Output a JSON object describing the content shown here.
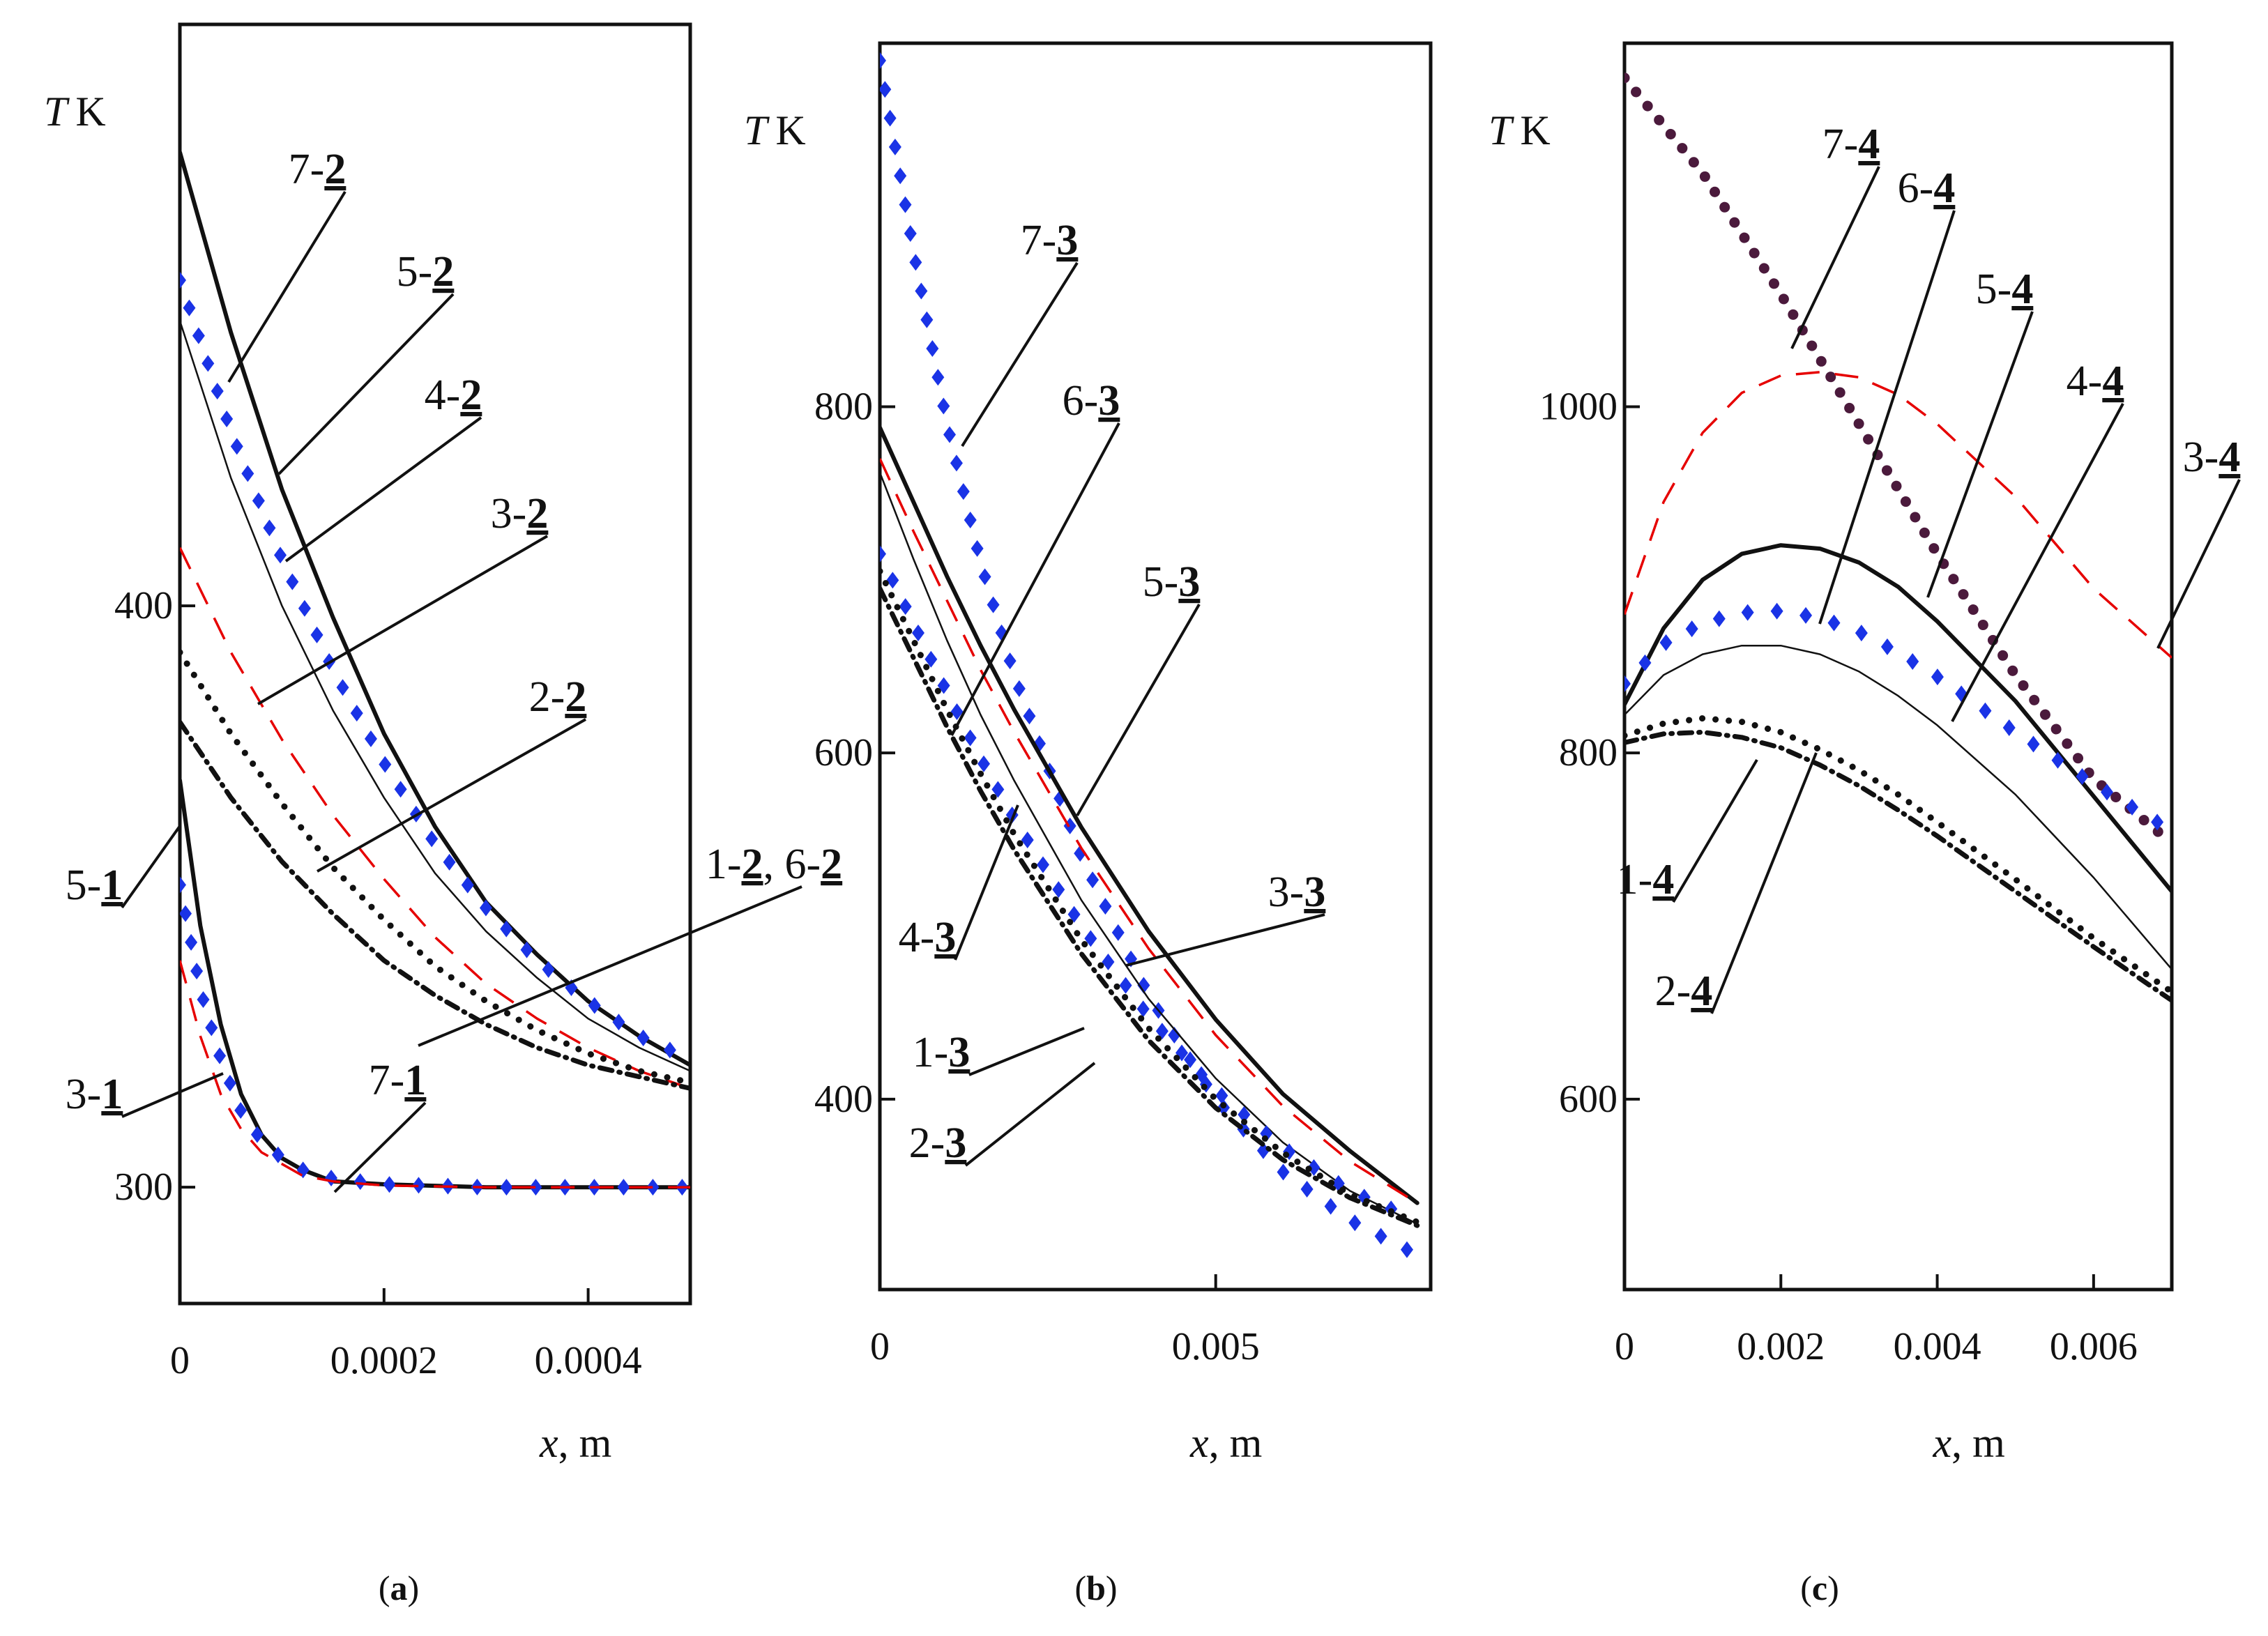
{
  "figure": {
    "panel_tags": [
      "(a)",
      "(b)",
      "(c)"
    ]
  },
  "chart_data": [
    {
      "type": "line",
      "panel": "(a)",
      "ylabel_var": "T",
      "ylabel_unit": "K",
      "xlabel_var": "x",
      "xlabel_unit": ", m",
      "xlim": [
        0,
        0.0005
      ],
      "ylim": [
        280,
        500
      ],
      "xticks": [
        {
          "v": 0,
          "label": "0"
        },
        {
          "v": 0.0002,
          "label": "0.0002"
        },
        {
          "v": 0.0004,
          "label": "0.0004"
        }
      ],
      "yticks": [
        {
          "v": 300,
          "label": "300"
        },
        {
          "v": 400,
          "label": "400"
        }
      ],
      "series": [
        {
          "id": "7-2",
          "style": "solid-thick",
          "color": "#111111",
          "x": [
            0,
            5e-05,
            0.0001,
            0.00015,
            0.0002,
            0.00025,
            0.0003,
            0.00035,
            0.0004,
            0.00045,
            0.0005
          ],
          "y": [
            478,
            447,
            420,
            398,
            378,
            362,
            349,
            340,
            332,
            326,
            321
          ]
        },
        {
          "id": "5-2",
          "style": "blue-diamond",
          "color": "#1a33e6",
          "x": [
            0,
            5e-05,
            0.0001,
            0.00015,
            0.0002,
            0.00025,
            0.0003,
            0.00035,
            0.0004,
            0.00045,
            0.0005
          ],
          "y": [
            456,
            430,
            408,
            389,
            373,
            359,
            348,
            339,
            332,
            326,
            322
          ]
        },
        {
          "id": "4-2",
          "style": "solid-thin",
          "color": "#111111",
          "x": [
            0,
            5e-05,
            0.0001,
            0.00015,
            0.0002,
            0.00025,
            0.0003,
            0.00035,
            0.0004,
            0.00045,
            0.0005
          ],
          "y": [
            449,
            422,
            400,
            382,
            367,
            354,
            344,
            336,
            329,
            324,
            320
          ]
        },
        {
          "id": "3-2",
          "style": "red-dash",
          "color": "#e60000",
          "x": [
            0,
            5e-05,
            0.0001,
            0.00015,
            0.0002,
            0.00025,
            0.0003,
            0.00035,
            0.0004,
            0.00045,
            0.0005
          ],
          "y": [
            410,
            392,
            377,
            364,
            353,
            343,
            335,
            329,
            324,
            320,
            317
          ]
        },
        {
          "id": "2-2",
          "style": "black-dot",
          "color": "#111111",
          "x": [
            0,
            5e-05,
            0.0001,
            0.00015,
            0.0002,
            0.00025,
            0.0003,
            0.00035,
            0.0004,
            0.00045,
            0.0005
          ],
          "y": [
            392,
            378,
            366,
            355,
            346,
            338,
            332,
            327,
            323,
            320,
            318
          ]
        },
        {
          "id": "1-2, 6-2",
          "style": "black-dashdot",
          "color": "#111111",
          "x": [
            0,
            5e-05,
            0.0001,
            0.00015,
            0.0002,
            0.00025,
            0.0003,
            0.00035,
            0.0004,
            0.00045,
            0.0005
          ],
          "y": [
            380,
            367,
            356,
            347,
            339,
            333,
            328,
            324,
            321,
            319,
            317
          ]
        },
        {
          "id": "5-1",
          "style": "solid-thick",
          "color": "#111111",
          "x": [
            0,
            2e-05,
            4e-05,
            6e-05,
            8e-05,
            0.0001,
            0.00012,
            0.00015,
            0.0002,
            0.0003,
            0.0004,
            0.0005
          ],
          "y": [
            370,
            345,
            328,
            316,
            309,
            305,
            303,
            301,
            300.5,
            300,
            300,
            300
          ]
        },
        {
          "id": "7-1",
          "style": "blue-diamond",
          "color": "#1a33e6",
          "x": [
            0,
            2e-05,
            4e-05,
            6e-05,
            8e-05,
            0.0001,
            0.00012,
            0.00015,
            0.0002,
            0.0003,
            0.0004,
            0.0005
          ],
          "y": [
            352,
            334,
            322,
            313,
            308,
            305,
            303,
            301.5,
            300.5,
            300,
            300,
            300
          ]
        },
        {
          "id": "3-1",
          "style": "red-dash",
          "color": "#e60000",
          "x": [
            0,
            2e-05,
            4e-05,
            6e-05,
            8e-05,
            0.0001,
            0.00012,
            0.00015,
            0.0002,
            0.0003,
            0.0004,
            0.0005
          ],
          "y": [
            339,
            326,
            316,
            310,
            306,
            304,
            302,
            301,
            300.3,
            300,
            300,
            300
          ]
        }
      ],
      "annotations": [
        {
          "pre": "7-",
          "num": "2"
        },
        {
          "pre": "5-",
          "num": "2"
        },
        {
          "pre": "4-",
          "num": "2"
        },
        {
          "pre": "3-",
          "num": "2"
        },
        {
          "pre": "2-",
          "num": "2"
        },
        {
          "pre": "1-",
          "num": "2",
          "mid": ", 6-",
          "num2": "2"
        },
        {
          "pre": "5-",
          "num": "1"
        },
        {
          "pre": "7-",
          "num": "1"
        },
        {
          "pre": "3-",
          "num": "1"
        }
      ]
    },
    {
      "type": "line",
      "panel": "(b)",
      "ylabel_var": "T",
      "ylabel_unit": "K",
      "xlabel_var": "x",
      "xlabel_unit": ", m",
      "xlim": [
        0,
        0.0082
      ],
      "ylim": [
        290,
        1010
      ],
      "xticks": [
        {
          "v": 0,
          "label": "0"
        },
        {
          "v": 0.005,
          "label": "0.005"
        }
      ],
      "yticks": [
        {
          "v": 400,
          "label": "400"
        },
        {
          "v": 600,
          "label": "600"
        },
        {
          "v": 800,
          "label": "800"
        }
      ],
      "series": [
        {
          "id": "7-3",
          "style": "blue-diamond",
          "color": "#1a33e6",
          "x": [
            0,
            0.0005,
            0.001,
            0.0015,
            0.002,
            0.003,
            0.004,
            0.005,
            0.006,
            0.007,
            0.008
          ],
          "y": [
            1000,
            890,
            790,
            710,
            645,
            540,
            460,
            400,
            358,
            330,
            310
          ]
        },
        {
          "id": "5-3",
          "style": "solid-thick",
          "color": "#111111",
          "x": [
            0,
            0.0005,
            0.001,
            0.0015,
            0.002,
            0.003,
            0.004,
            0.005,
            0.006,
            0.007,
            0.008
          ],
          "y": [
            788,
            745,
            702,
            662,
            625,
            557,
            497,
            446,
            403,
            370,
            340
          ]
        },
        {
          "id": "3-3",
          "style": "red-dash",
          "color": "#e60000",
          "x": [
            0,
            0.0005,
            0.001,
            0.0015,
            0.002,
            0.003,
            0.004,
            0.005,
            0.006,
            0.007,
            0.008
          ],
          "y": [
            770,
            728,
            688,
            648,
            612,
            545,
            487,
            437,
            396,
            364,
            340
          ]
        },
        {
          "id": "4-3",
          "style": "solid-thin",
          "color": "#111111",
          "x": [
            0,
            0.0005,
            0.001,
            0.0015,
            0.002,
            0.003,
            0.004,
            0.005,
            0.006,
            0.007,
            0.008
          ],
          "y": [
            762,
            712,
            665,
            622,
            584,
            515,
            458,
            412,
            375,
            347,
            328
          ]
        },
        {
          "id": "6-3",
          "style": "blue-diamond",
          "color": "#1a33e6",
          "x": [
            0,
            0.0005,
            0.001,
            0.0015,
            0.002,
            0.003,
            0.004,
            0.005,
            0.006,
            0.007,
            0.008
          ],
          "y": [
            715,
            675,
            635,
            597,
            562,
            500,
            448,
            405,
            372,
            347,
            330
          ]
        },
        {
          "id": "1-3",
          "style": "black-dot",
          "color": "#111111",
          "x": [
            0,
            0.0005,
            0.001,
            0.0015,
            0.002,
            0.003,
            0.004,
            0.005,
            0.006,
            0.007,
            0.008
          ],
          "y": [
            705,
            665,
            625,
            588,
            553,
            492,
            441,
            400,
            369,
            345,
            329
          ]
        },
        {
          "id": "2-3",
          "style": "black-dashdot",
          "color": "#111111",
          "x": [
            0,
            0.0005,
            0.001,
            0.0015,
            0.002,
            0.003,
            0.004,
            0.005,
            0.006,
            0.007,
            0.008
          ],
          "y": [
            695,
            655,
            615,
            578,
            544,
            484,
            434,
            395,
            365,
            343,
            327
          ]
        }
      ],
      "annotations": [
        {
          "pre": "7-",
          "num": "3"
        },
        {
          "pre": "6-",
          "num": "3"
        },
        {
          "pre": "5-",
          "num": "3"
        },
        {
          "pre": "3-",
          "num": "3"
        },
        {
          "pre": "4-",
          "num": "3"
        },
        {
          "pre": "1-",
          "num": "3"
        },
        {
          "pre": "2-",
          "num": "3"
        }
      ]
    },
    {
      "type": "line",
      "panel": "(c)",
      "ylabel_var": "T",
      "ylabel_unit": "K",
      "xlabel_var": "x",
      "xlabel_unit": ", m",
      "xlim": [
        0,
        0.007
      ],
      "ylim": [
        490,
        1210
      ],
      "xticks": [
        {
          "v": 0,
          "label": "0"
        },
        {
          "v": 0.002,
          "label": "0.002"
        },
        {
          "v": 0.004,
          "label": "0.004"
        },
        {
          "v": 0.006,
          "label": "0.006"
        }
      ],
      "yticks": [
        {
          "v": 600,
          "label": "600"
        },
        {
          "v": 800,
          "label": "800"
        },
        {
          "v": 1000,
          "label": "1000"
        }
      ],
      "series": [
        {
          "id": "7-4",
          "style": "purple-dot",
          "color": "#4b1a3c",
          "x": [
            0,
            0.001,
            0.002,
            0.003,
            0.004,
            0.005,
            0.006,
            0.007
          ],
          "y": [
            1190,
            1135,
            1065,
            990,
            915,
            845,
            785,
            748
          ]
        },
        {
          "id": "3-4",
          "style": "red-dash",
          "color": "#e60000",
          "x": [
            0,
            0.0005,
            0.001,
            0.0015,
            0.002,
            0.0025,
            0.003,
            0.0035,
            0.004,
            0.005,
            0.006,
            0.007
          ],
          "y": [
            880,
            945,
            985,
            1008,
            1018,
            1020,
            1017,
            1007,
            990,
            948,
            895,
            855
          ]
        },
        {
          "id": "5-4",
          "style": "solid-thick",
          "color": "#111111",
          "x": [
            0,
            0.0005,
            0.001,
            0.0015,
            0.002,
            0.0025,
            0.003,
            0.0035,
            0.004,
            0.005,
            0.006,
            0.007
          ],
          "y": [
            828,
            872,
            900,
            915,
            920,
            918,
            910,
            896,
            876,
            830,
            775,
            720
          ]
        },
        {
          "id": "6-4",
          "style": "blue-diamond",
          "color": "#1a33e6",
          "x": [
            0,
            0.0005,
            0.001,
            0.0015,
            0.002,
            0.0025,
            0.003,
            0.0035,
            0.004,
            0.005,
            0.006,
            0.007
          ],
          "y": [
            840,
            863,
            875,
            881,
            882,
            878,
            870,
            858,
            844,
            812,
            782,
            755
          ]
        },
        {
          "id": "4-4",
          "style": "solid-thin",
          "color": "#111111",
          "x": [
            0,
            0.0005,
            0.001,
            0.0015,
            0.002,
            0.0025,
            0.003,
            0.0035,
            0.004,
            0.005,
            0.006,
            0.007
          ],
          "y": [
            822,
            845,
            857,
            862,
            862,
            857,
            847,
            833,
            816,
            776,
            728,
            675
          ]
        },
        {
          "id": "1-4",
          "style": "black-dot",
          "color": "#111111",
          "x": [
            0,
            0.0005,
            0.001,
            0.0015,
            0.002,
            0.0025,
            0.003,
            0.0035,
            0.004,
            0.005,
            0.006,
            0.007
          ],
          "y": [
            810,
            817,
            820,
            818,
            812,
            802,
            790,
            776,
            760,
            727,
            693,
            662
          ]
        },
        {
          "id": "2-4",
          "style": "black-dashdot",
          "color": "#111111",
          "x": [
            0,
            0.0005,
            0.001,
            0.0015,
            0.002,
            0.0025,
            0.003,
            0.0035,
            0.004,
            0.005,
            0.006,
            0.007
          ],
          "y": [
            806,
            811,
            812,
            809,
            803,
            793,
            781,
            767,
            752,
            720,
            688,
            657
          ]
        }
      ],
      "annotations": [
        {
          "pre": "7-",
          "num": "4"
        },
        {
          "pre": "6-",
          "num": "4"
        },
        {
          "pre": "5-",
          "num": "4"
        },
        {
          "pre": "4-",
          "num": "4"
        },
        {
          "pre": "3-",
          "num": "4"
        },
        {
          "pre": "1-",
          "num": "4"
        },
        {
          "pre": "2-",
          "num": "4"
        }
      ]
    }
  ]
}
